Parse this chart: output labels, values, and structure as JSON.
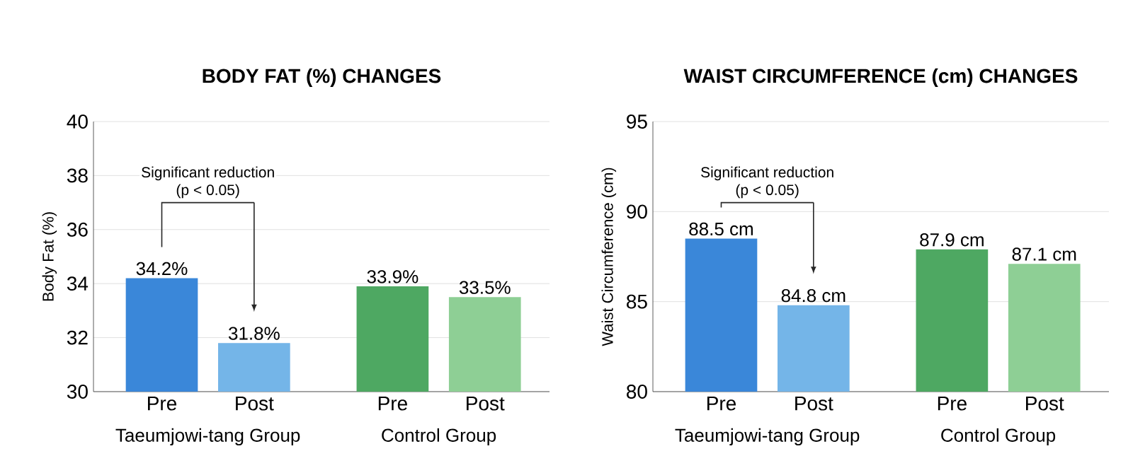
{
  "chart_data": [
    {
      "type": "bar",
      "title": "BODY FAT (%) CHANGES",
      "ylabel": "Body Fat (%)",
      "categories": [
        "Pre",
        "Post",
        "Pre",
        "Post"
      ],
      "values": [
        34.2,
        31.8,
        33.9,
        33.5
      ],
      "colors": [
        "#3a87d9",
        "#74b5e8",
        "#4ea862",
        "#8ecf95"
      ],
      "value_labels": [
        "34.2%",
        "31.8%",
        "33.9%",
        "33.5%"
      ],
      "ylim": [
        30,
        40
      ],
      "yticks": [
        30,
        32,
        34,
        36,
        38,
        40
      ],
      "grid": "y",
      "annotations": [
        "Significant reduction",
        "(p < 0.05)",
        "Taeumjowi-tang Group",
        "Control Group"
      ]
    },
    {
      "type": "bar",
      "title": "WAIST CIRCUMFERENCE (cm) CHANGES",
      "ylabel": "Waist Circumference (cm)",
      "categories": [
        "Pre",
        "Post",
        "Pre",
        "Post"
      ],
      "values": [
        88.5,
        84.8,
        87.9,
        87.1
      ],
      "colors": [
        "#3a87d9",
        "#74b5e8",
        "#4ea862",
        "#8ecf95"
      ],
      "value_labels": [
        "88.5 cm",
        "84.8 cm",
        "87.9 cm",
        "87.1 cm"
      ],
      "ylim": [
        80,
        95
      ],
      "yticks": [
        80,
        85,
        90,
        95
      ],
      "grid": "y",
      "annotations": [
        "Significant reduction",
        "(p < 0.05)",
        "Taeumjowi-tang Group",
        "Control Group"
      ]
    }
  ]
}
